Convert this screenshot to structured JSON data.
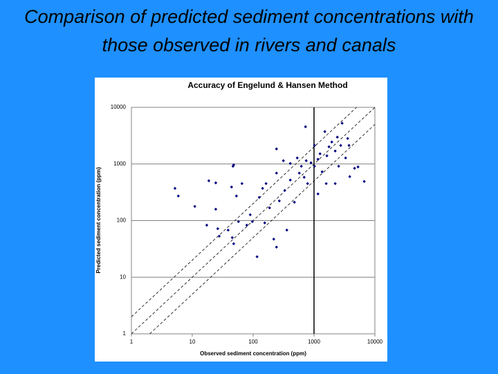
{
  "slide_title": "Comparison of predicted sediment concentrations with those observed in rivers and canals",
  "chart_data": {
    "type": "scatter",
    "title": "Accuracy of Engelund & Hansen Method",
    "x_label": "Observed sediment concentration (ppm)",
    "y_label": "Predicted sediment concentration (ppm)",
    "log_x": true,
    "log_y": true,
    "xlim": [
      1,
      10000
    ],
    "ylim": [
      1,
      10000
    ],
    "xticks": [
      1,
      10,
      100,
      1000,
      10000
    ],
    "yticks": [
      1,
      10,
      100,
      1000,
      10000
    ],
    "grid": true,
    "y_axis_crosses_at": 1000,
    "reference_ratios": [
      0.5,
      1,
      2
    ],
    "series": [
      {
        "color": "#000080",
        "x": [
          5.2,
          5.9,
          11,
          18.7,
          24.3,
          24.3,
          46.6,
          44.2,
          65.5,
          53.1,
          17.3,
          26.2,
          38.8,
          27.7,
          45.4,
          47.9,
          57.4,
          78.6,
          89.6,
          126,
          163,
          186,
          242,
          314,
          408,
          530,
          573,
          689,
          745,
          893,
          1019,
          1161,
          1256,
          1358,
          1629,
          1762,
          1959,
          2229,
          2415,
          2541,
          2748,
          3304,
          3573,
          3864,
          4637,
          5284,
          6683,
          725,
          242,
          218,
          242,
          358,
          116,
          269,
          477,
          1161,
          2229,
          1507,
          2897,
          47.9,
          97,
          408,
          784,
          155,
          1588,
          3758,
          1019,
          620,
          143,
          331
        ],
        "values": [
          371,
          272,
          178,
          505,
          464,
          159,
          912,
          392,
          451,
          272,
          83,
          72,
          68,
          53,
          50,
          39,
          96,
          83,
          127,
          257,
          451,
          168,
          689,
          1143,
          1021,
          1279,
          689,
          582,
          1143,
          1050,
          912,
          1210,
          1514,
          728,
          1393,
          2009,
          2444,
          1695,
          2979,
          912,
          2124,
          1279,
          2817,
          598,
          839,
          887,
          491,
          4546,
          1845,
          47,
          34,
          68,
          23,
          223,
          211,
          296,
          451,
          3732,
          5236,
          966,
          96,
          520,
          451,
          91,
          451,
          2124,
          2124,
          912,
          371,
          341
        ]
      }
    ]
  }
}
